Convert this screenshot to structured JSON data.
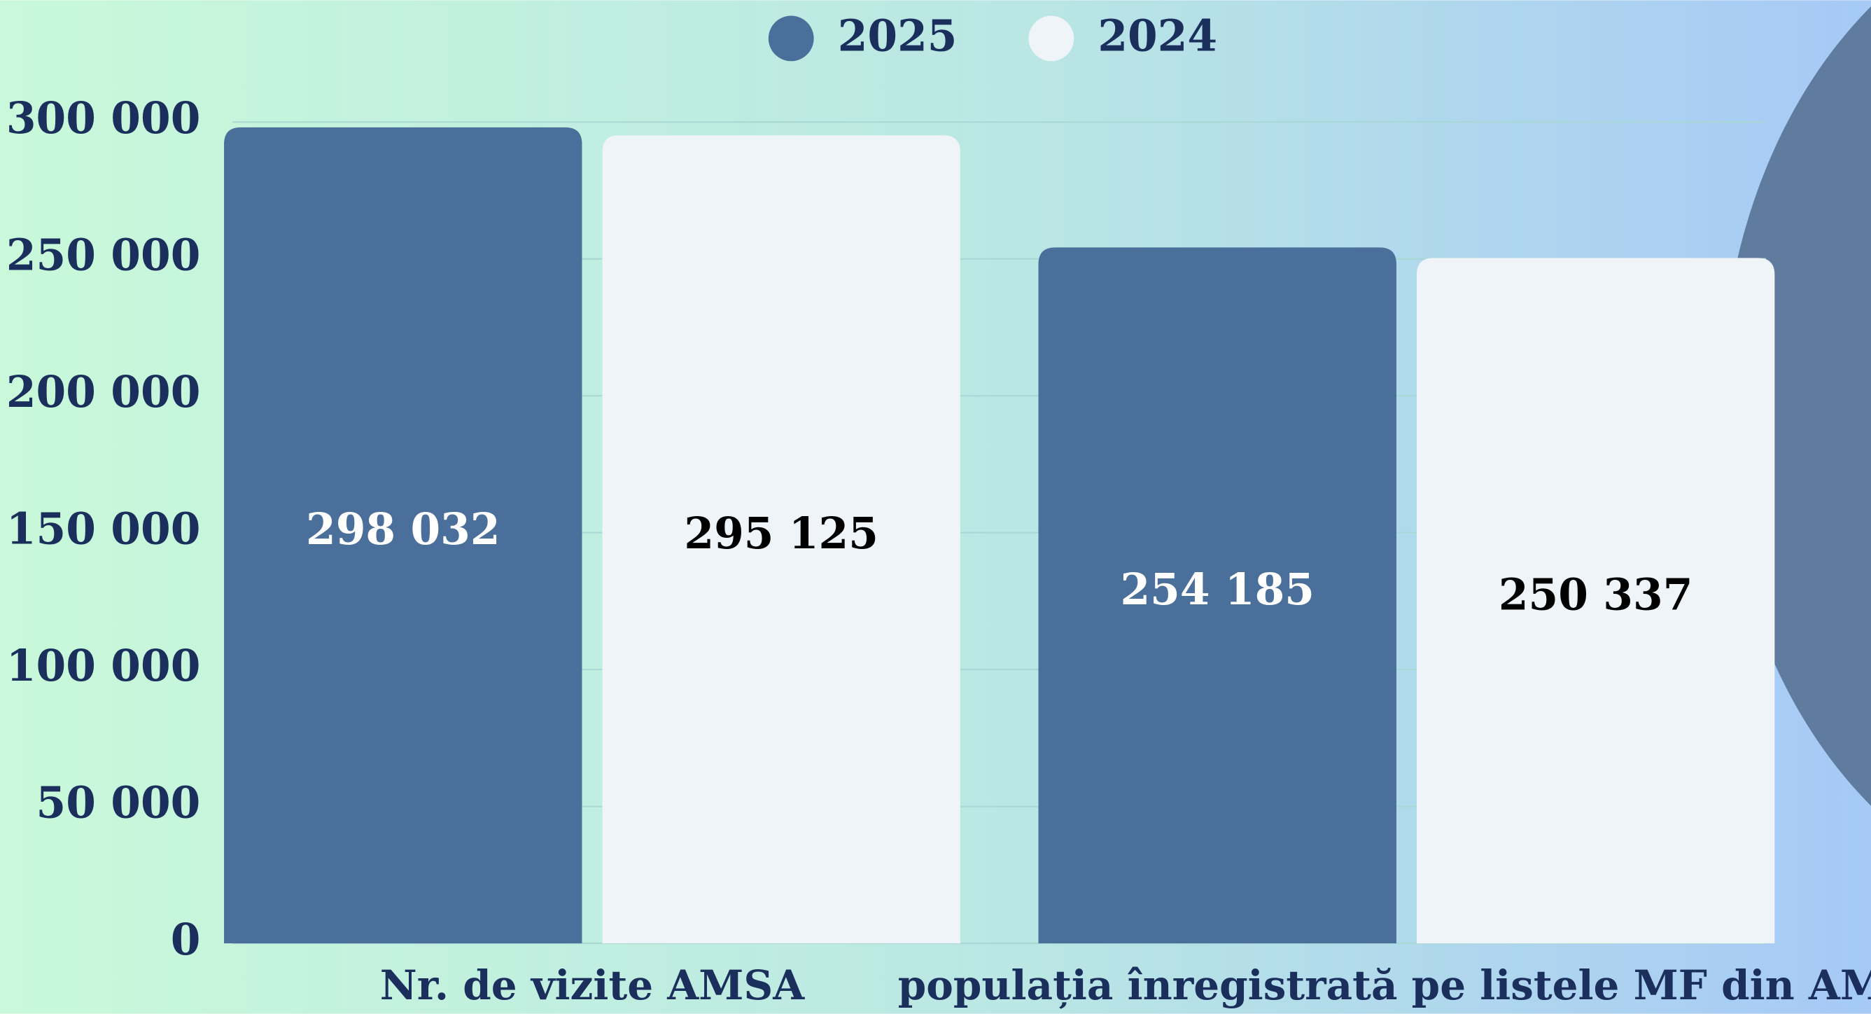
{
  "chart_data": {
    "type": "bar",
    "categories": [
      "Nr. de vizite AMSA",
      "populația înregistrată pe listele MF din AMT"
    ],
    "series": [
      {
        "name": "2025",
        "color": "#4a6f9a",
        "values": [
          298032,
          254185
        ],
        "value_labels": [
          "298 032",
          "254 185"
        ]
      },
      {
        "name": "2024",
        "color": "#eef4f7",
        "values": [
          295125,
          250337
        ],
        "value_labels": [
          "295 125",
          "250 337"
        ]
      }
    ],
    "ylim": [
      0,
      300000
    ],
    "yticks": [
      0,
      {
        "value": 50000,
        "label": "50 000"
      },
      {
        "value": 100000,
        "label": "100 000"
      },
      {
        "value": 150000,
        "label": "150 000"
      },
      {
        "value": 200000,
        "label": "200 000"
      },
      {
        "value": 250000,
        "label": "250 000"
      },
      {
        "value": 300000,
        "label": "300 000"
      }
    ],
    "grid": true,
    "legend": "top"
  }
}
